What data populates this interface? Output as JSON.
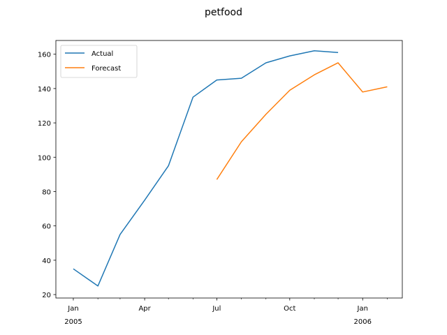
{
  "chart_data": {
    "type": "line",
    "title": "petfood",
    "xlabel": "",
    "ylabel": "",
    "x_ticks": [
      {
        "date": "2005-01",
        "label": "Jan",
        "sublabel": "2005"
      },
      {
        "date": "2005-04",
        "label": "Apr",
        "sublabel": ""
      },
      {
        "date": "2005-07",
        "label": "Jul",
        "sublabel": ""
      },
      {
        "date": "2005-10",
        "label": "Oct",
        "sublabel": ""
      },
      {
        "date": "2006-01",
        "label": "Jan",
        "sublabel": "2006"
      }
    ],
    "x_minor_ticks": [
      "2005-02",
      "2005-03",
      "2005-05",
      "2005-06",
      "2005-08",
      "2005-09",
      "2005-11",
      "2005-12",
      "2006-02"
    ],
    "xlim": [
      "2004-12-10",
      "2006-02-20"
    ],
    "y_ticks": [
      20,
      40,
      60,
      80,
      100,
      120,
      140,
      160
    ],
    "ylim": [
      18,
      168
    ],
    "grid": false,
    "legend_position": "upper-left",
    "series": [
      {
        "name": "Actual",
        "color": "#1f77b4",
        "x": [
          "2005-01",
          "2005-02",
          "2005-03",
          "2005-04",
          "2005-05",
          "2005-06",
          "2005-07",
          "2005-08",
          "2005-09",
          "2005-10",
          "2005-11",
          "2005-12"
        ],
        "values": [
          35,
          25,
          55,
          75,
          95,
          135,
          145,
          146,
          155,
          159,
          162,
          161
        ]
      },
      {
        "name": "Forecast",
        "color": "#ff7f0e",
        "x": [
          "2005-07",
          "2005-08",
          "2005-09",
          "2005-10",
          "2005-11",
          "2005-12",
          "2006-01",
          "2006-02"
        ],
        "values": [
          87,
          109,
          125,
          139,
          148,
          155,
          138,
          141
        ]
      }
    ]
  }
}
